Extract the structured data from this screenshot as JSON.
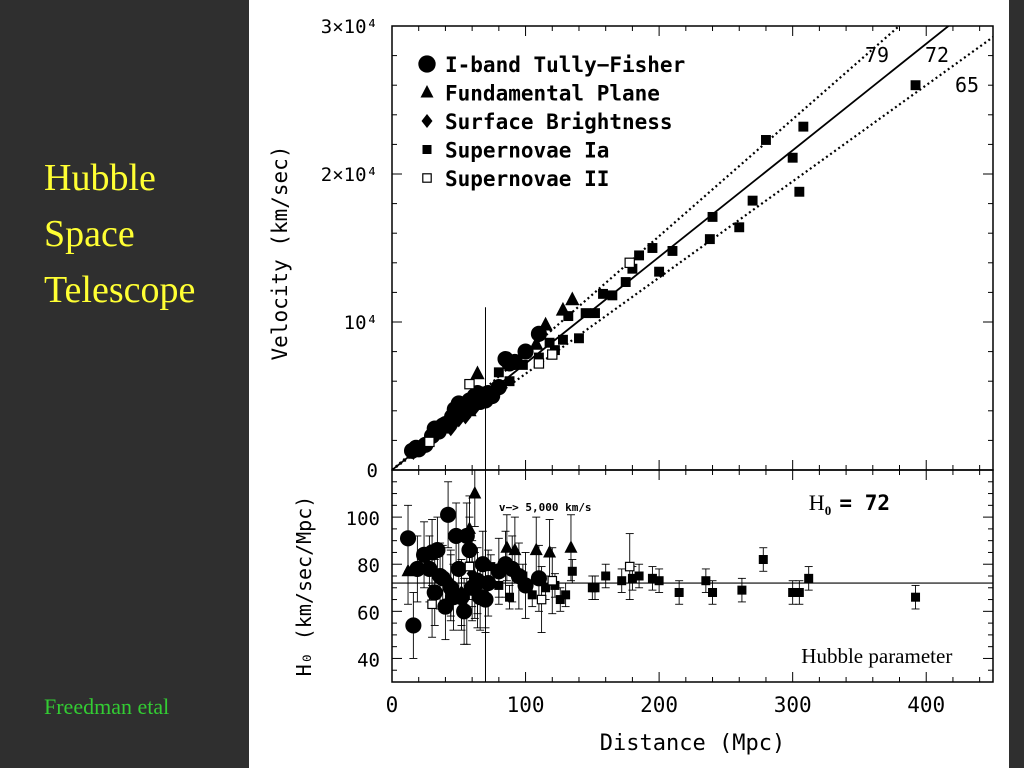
{
  "slide": {
    "title_lines": [
      "Hubble",
      "Space",
      "Telescope"
    ],
    "credit": "Freedman etal",
    "colors": {
      "background": "#2f2f2f",
      "title": "#ffff33",
      "credit": "#33cc33",
      "figure_bg": "#ffffff"
    }
  },
  "chart_data": [
    {
      "type": "scatter",
      "panel": "top",
      "ylabel": "Velocity (km/sec)",
      "xlim": [
        0,
        450
      ],
      "ylim": [
        0,
        30000
      ],
      "y_tick_labels": [
        "0",
        "10⁴",
        "2×10⁴",
        "3×10⁴"
      ],
      "y_ticks": [
        0,
        10000,
        20000,
        30000
      ],
      "legend_position": "top-left",
      "lines": [
        {
          "label": "79",
          "slope": 79,
          "style": "dotted"
        },
        {
          "label": "72",
          "slope": 72,
          "style": "solid"
        },
        {
          "label": "65",
          "slope": 65,
          "style": "dotted"
        }
      ],
      "vertical_line_x": 70,
      "series": [
        {
          "name": "I-band Tully−Fisher",
          "marker": "circle",
          "x": [
            15,
            18,
            20,
            25,
            30,
            32,
            35,
            38,
            40,
            42,
            44,
            45,
            47,
            48,
            50,
            52,
            55,
            58,
            60,
            62,
            64,
            66,
            68,
            70,
            72,
            75,
            80,
            85,
            88,
            92,
            100,
            110
          ],
          "y": [
            1300,
            1500,
            1400,
            1700,
            2300,
            2800,
            2600,
            3000,
            3100,
            3000,
            3200,
            3600,
            4100,
            4000,
            4500,
            4200,
            4300,
            4700,
            4400,
            5000,
            5200,
            4600,
            5100,
            4700,
            5200,
            5000,
            5600,
            7500,
            7200,
            7300,
            8000,
            9200
          ]
        },
        {
          "name": "Fundamental Plane",
          "marker": "triangle",
          "x": [
            58,
            64,
            72,
            92,
            108,
            115,
            128,
            135
          ],
          "y": [
            4000,
            6500,
            4900,
            7300,
            8500,
            9800,
            10800,
            11500
          ]
        },
        {
          "name": "Surface Brightness",
          "marker": "diamond",
          "x": [
            16,
            28,
            44,
            50,
            55,
            58,
            62
          ],
          "y": [
            1200,
            1900,
            2800,
            3400,
            3600,
            4000,
            4200
          ]
        },
        {
          "name": "Supernovae Ia",
          "marker": "square",
          "x": [
            80,
            88,
            98,
            110,
            118,
            122,
            128,
            132,
            140,
            145,
            152,
            158,
            165,
            175,
            180,
            185,
            195,
            200,
            210,
            238,
            240,
            260,
            270,
            280,
            300,
            305,
            308,
            392
          ],
          "y": [
            6600,
            6000,
            7100,
            7600,
            8600,
            8100,
            8800,
            10400,
            8900,
            10600,
            10600,
            11900,
            11800,
            12700,
            13600,
            14500,
            15000,
            13400,
            14800,
            15600,
            17100,
            16400,
            18200,
            22300,
            21100,
            18800,
            23200,
            26000
          ]
        },
        {
          "name": "Supernovae II",
          "marker": "open-square",
          "x": [
            28,
            58,
            110,
            120,
            178
          ],
          "y": [
            1900,
            5800,
            7200,
            7800,
            14000
          ]
        }
      ]
    },
    {
      "type": "scatter",
      "panel": "bottom",
      "xlabel": "Distance (Mpc)",
      "ylabel": "H₀ (km/sec/Mpc)",
      "xlim": [
        0,
        450
      ],
      "ylim": [
        30,
        120
      ],
      "x_tick_labels": [
        "0",
        "100",
        "200",
        "300",
        "400"
      ],
      "x_ticks": [
        0,
        100,
        200,
        300,
        400
      ],
      "y_tick_labels": [
        "40",
        "60",
        "80",
        "100"
      ],
      "y_ticks": [
        40,
        60,
        80,
        100
      ],
      "h0_label": "H₀",
      "h0_value": "= 72",
      "annotation": "v−> 5,000 km/s",
      "reference_line_y": 72,
      "vertical_line_x": 70,
      "overlay_label": "Hubble parameter",
      "series": [
        {
          "name": "I-band Tully−Fisher",
          "marker": "circle",
          "x": [
            12,
            16,
            19,
            24,
            28,
            30,
            32,
            34,
            36,
            38,
            40,
            42,
            44,
            46,
            48,
            50,
            52,
            54,
            56,
            58,
            60,
            62,
            64,
            66,
            68,
            70,
            72,
            80,
            85,
            90,
            95,
            100,
            110
          ],
          "y": [
            91,
            54,
            78,
            84,
            78,
            85,
            68,
            86,
            75,
            74,
            62,
            101,
            70,
            66,
            92,
            78,
            66,
            60,
            92,
            86,
            70,
            71,
            73,
            66,
            80,
            65,
            72,
            77,
            80,
            78,
            75,
            71,
            74
          ]
        },
        {
          "name": "Fundamental Plane",
          "marker": "triangle",
          "x": [
            12,
            58,
            62,
            86,
            92,
            108,
            118,
            134
          ],
          "y": [
            77,
            95,
            110,
            87,
            86,
            86,
            85,
            87
          ]
        },
        {
          "name": "Surface Brightness",
          "marker": "diamond",
          "x": [
            44,
            52,
            56,
            60,
            64,
            70
          ],
          "y": [
            72,
            68,
            60,
            76,
            67,
            67
          ]
        },
        {
          "name": "Supernovae Ia",
          "marker": "square",
          "x": [
            74,
            80,
            88,
            98,
            105,
            115,
            122,
            126,
            130,
            135,
            150,
            152,
            160,
            172,
            180,
            185,
            195,
            200,
            215,
            235,
            240,
            262,
            278,
            300,
            305,
            312,
            392
          ],
          "y": [
            79,
            71,
            66,
            75,
            67,
            70,
            71,
            65,
            67,
            77,
            70,
            70,
            75,
            73,
            74,
            75,
            74,
            73,
            68,
            73,
            68,
            69,
            82,
            68,
            68,
            74,
            66
          ]
        },
        {
          "name": "Supernovae II",
          "marker": "open-square",
          "x": [
            30,
            58,
            112,
            120,
            178
          ],
          "y": [
            63,
            79,
            65,
            73,
            79
          ]
        }
      ]
    }
  ]
}
